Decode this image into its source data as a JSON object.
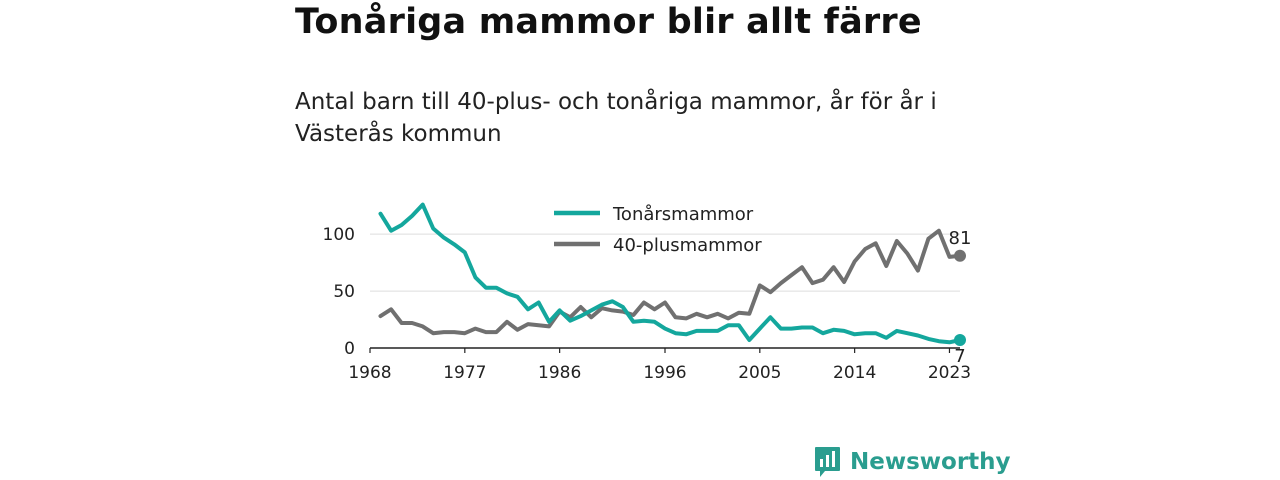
{
  "title": "Tonåriga mammor blir allt färre",
  "subtitle": "Antal barn till 40-plus- och tonåriga mammor, år för år i Västerås kommun",
  "brand": "Newsworthy",
  "colors": {
    "teen": "#14a79d",
    "forty": "#707070",
    "brand": "#2a9d8f"
  },
  "chart_data": {
    "type": "line",
    "x_ticks": [
      1968,
      1977,
      1986,
      1996,
      2005,
      2014,
      2023
    ],
    "y_ticks": [
      0,
      50,
      100
    ],
    "xlim": [
      1968,
      2024
    ],
    "ylim": [
      0,
      130
    ],
    "legend_position": "top-center",
    "grid": "horizontal",
    "x": [
      1969,
      1970,
      1971,
      1972,
      1973,
      1974,
      1975,
      1976,
      1977,
      1978,
      1979,
      1980,
      1981,
      1982,
      1983,
      1984,
      1985,
      1986,
      1987,
      1988,
      1989,
      1990,
      1991,
      1992,
      1993,
      1994,
      1995,
      1996,
      1997,
      1998,
      1999,
      2000,
      2001,
      2002,
      2003,
      2004,
      2005,
      2006,
      2007,
      2008,
      2009,
      2010,
      2011,
      2012,
      2013,
      2014,
      2015,
      2016,
      2017,
      2018,
      2019,
      2020,
      2021,
      2022,
      2023,
      2024
    ],
    "series": [
      {
        "name": "Tonårsmammor",
        "color": "#14a79d",
        "values": [
          118,
          103,
          108,
          116,
          126,
          105,
          97,
          91,
          84,
          62,
          53,
          53,
          48,
          45,
          34,
          40,
          23,
          33,
          24,
          28,
          33,
          38,
          41,
          36,
          23,
          24,
          23,
          17,
          13,
          12,
          15,
          15,
          15,
          20,
          20,
          7,
          17,
          27,
          17,
          17,
          18,
          18,
          13,
          16,
          15,
          12,
          13,
          13,
          9,
          15,
          13,
          11,
          8,
          6,
          5,
          7
        ],
        "end_label": "7"
      },
      {
        "name": "40-plusmammor",
        "color": "#707070",
        "values": [
          28,
          34,
          22,
          22,
          19,
          13,
          14,
          14,
          13,
          17,
          14,
          14,
          23,
          16,
          21,
          20,
          19,
          32,
          27,
          36,
          27,
          35,
          33,
          32,
          29,
          40,
          34,
          40,
          27,
          26,
          30,
          27,
          30,
          26,
          31,
          30,
          55,
          49,
          57,
          64,
          71,
          57,
          60,
          71,
          58,
          76,
          87,
          92,
          72,
          94,
          83,
          68,
          96,
          103,
          80,
          81
        ],
        "end_label": "81"
      }
    ]
  }
}
